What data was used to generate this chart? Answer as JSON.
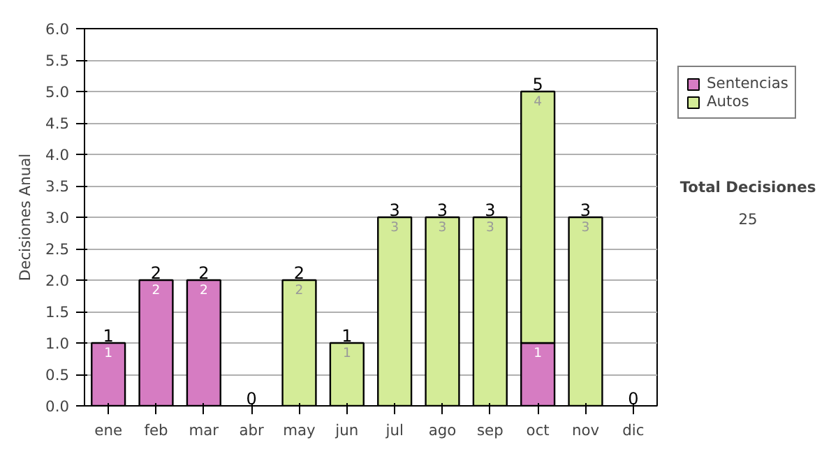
{
  "chart_data": {
    "type": "bar",
    "stacked": true,
    "ylabel": "Decisiones Anual",
    "categories": [
      "ene",
      "feb",
      "mar",
      "abr",
      "may",
      "jun",
      "jul",
      "ago",
      "sep",
      "oct",
      "nov",
      "dic"
    ],
    "series": [
      {
        "name": "Sentencias",
        "color": "#d67cc2",
        "values": [
          1,
          2,
          2,
          0,
          0,
          0,
          0,
          0,
          0,
          1,
          0,
          0
        ],
        "value_labels": [
          "1",
          "2",
          "2",
          null,
          null,
          null,
          null,
          null,
          null,
          "1",
          null,
          null
        ]
      },
      {
        "name": "Autos",
        "color": "#d4ec98",
        "values": [
          0,
          0,
          0,
          0,
          2,
          1,
          3,
          3,
          3,
          4,
          3,
          0
        ],
        "value_labels": [
          null,
          null,
          null,
          null,
          "2",
          "1",
          "3",
          "3",
          "3",
          "4",
          "3",
          null
        ]
      }
    ],
    "totals": [
      "1",
      "2",
      "2",
      "0",
      "2",
      "1",
      "3",
      "3",
      "3",
      "5",
      "3",
      "0"
    ],
    "ylim": [
      0,
      6
    ],
    "yticks": [
      {
        "value": 0,
        "label": "0.0"
      },
      {
        "value": 0.5,
        "label": "0.5"
      },
      {
        "value": 1,
        "label": "1.0"
      },
      {
        "value": 1.5,
        "label": "1.5"
      },
      {
        "value": 2,
        "label": "2.0"
      },
      {
        "value": 2.5,
        "label": "2.5"
      },
      {
        "value": 3,
        "label": "3.0"
      },
      {
        "value": 3.5,
        "label": "3.5"
      },
      {
        "value": 4,
        "label": "4.0"
      },
      {
        "value": 4.5,
        "label": "4.5"
      },
      {
        "value": 5,
        "label": "5.0"
      },
      {
        "value": 5.5,
        "label": "5.5"
      },
      {
        "value": 6,
        "label": "6.0"
      }
    ],
    "grid": "y",
    "legend": "right",
    "annotations": [
      "Total Decisiones",
      "25"
    ]
  }
}
